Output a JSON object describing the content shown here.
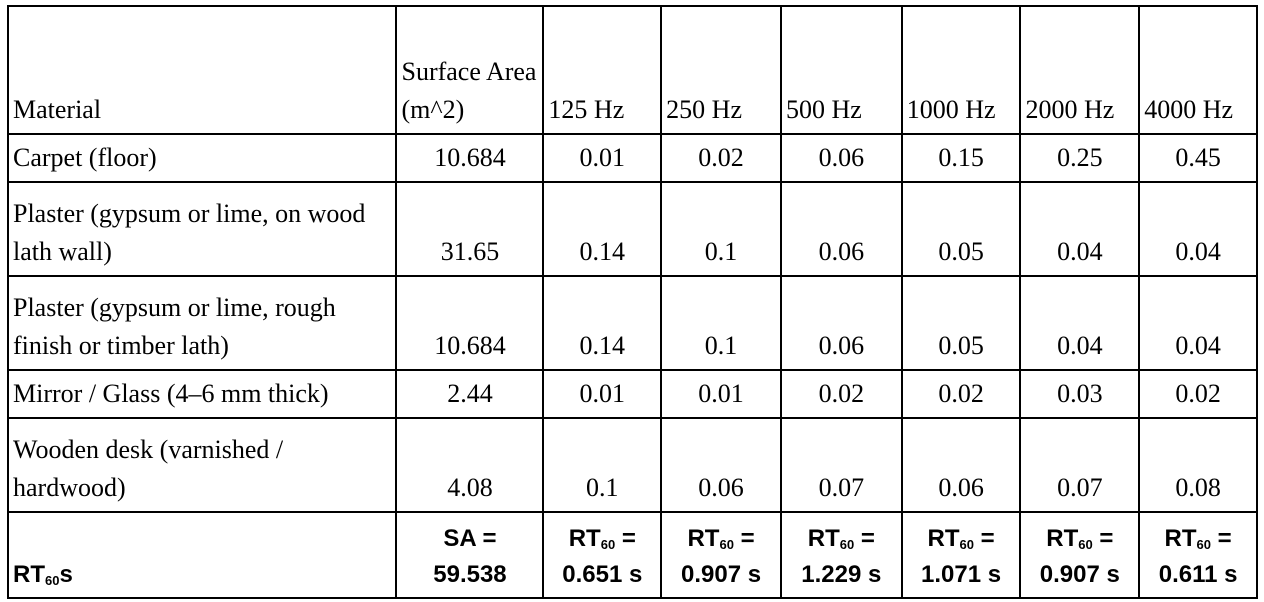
{
  "headers": [
    "Material",
    "Surface Area (m^2)",
    "125 Hz",
    "250 Hz",
    "500 Hz",
    "1000 Hz",
    "2000 Hz",
    "4000 Hz"
  ],
  "rows": [
    {
      "material": "Carpet (floor)",
      "values": [
        "10.684",
        "0.01",
        "0.02",
        "0.06",
        "0.15",
        "0.25",
        "0.45"
      ]
    },
    {
      "material": "Plaster (gypsum or lime, on wood lath wall)",
      "values": [
        "31.65",
        "0.14",
        "0.1",
        "0.06",
        "0.05",
        "0.04",
        "0.04"
      ]
    },
    {
      "material": "Plaster (gypsum or lime, rough finish or timber lath)",
      "values": [
        "10.684",
        "0.14",
        "0.1",
        "0.06",
        "0.05",
        "0.04",
        "0.04"
      ]
    },
    {
      "material": "Mirror / Glass (4–6 mm thick)",
      "values": [
        "2.44",
        "0.01",
        "0.01",
        "0.02",
        "0.02",
        "0.03",
        "0.02"
      ]
    },
    {
      "material": "Wooden desk (varnished / hardwood)",
      "values": [
        "4.08",
        "0.1",
        "0.06",
        "0.07",
        "0.06",
        "0.07",
        "0.08"
      ]
    }
  ],
  "footer": {
    "label_main": "RT",
    "label_sub": "60",
    "label_suffix": "s",
    "sa_prefix": "SA =",
    "sa_value": "59.538",
    "rt_prefix": "RT",
    "rt_sub": "60",
    "rt_eq": " =",
    "rt_values": [
      "0.651 s",
      "0.907 s",
      "1.229 s",
      "1.071 s",
      "0.907 s",
      "0.611 s"
    ]
  }
}
